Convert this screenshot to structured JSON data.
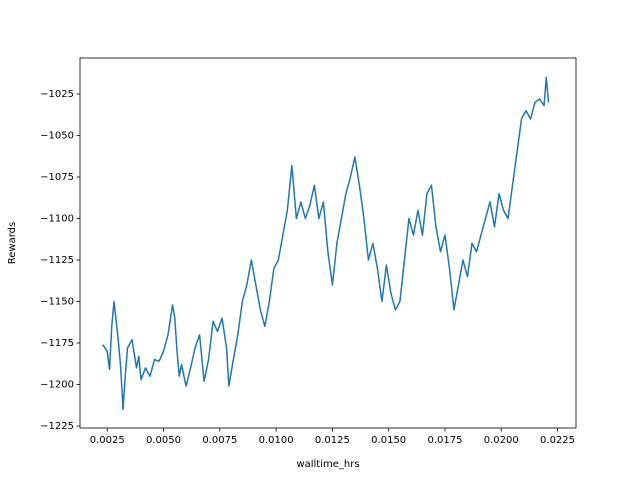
{
  "chart_data": {
    "type": "line",
    "xlabel": "walltime_hrs",
    "ylabel": "Rewards",
    "xlim": [
      0.00129,
      0.02332
    ],
    "ylim": [
      -1226.2,
      -1003.3
    ],
    "xticks": [
      0.0025,
      {
        "value": 0.005,
        "label": "0.0050"
      },
      0.0075,
      {
        "value": 0.01,
        "label": "0.0100"
      },
      0.0125,
      {
        "value": 0.015,
        "label": "0.0150"
      },
      0.0175,
      {
        "value": 0.02,
        "label": "0.0200"
      },
      0.0225
    ],
    "yticks": [
      {
        "value": -1225,
        "label": "−1225"
      },
      {
        "value": -1200,
        "label": "−1200"
      },
      {
        "value": -1175,
        "label": "−1175"
      },
      {
        "value": -1150,
        "label": "−1150"
      },
      {
        "value": -1125,
        "label": "−1125"
      },
      {
        "value": -1100,
        "label": "−1100"
      },
      {
        "value": -1075,
        "label": "−1075"
      },
      {
        "value": -1050,
        "label": "−1050"
      },
      {
        "value": -1025,
        "label": "−1025"
      }
    ],
    "series": [
      {
        "color": "#1f77b4",
        "x": [
          0.0023,
          0.0025,
          0.0026,
          0.0027,
          0.0028,
          0.0029,
          0.003,
          0.0031,
          0.0032,
          0.0033,
          0.0034,
          0.0036,
          0.0038,
          0.0039,
          0.004,
          0.0042,
          0.0044,
          0.0046,
          0.0048,
          0.005,
          0.0052,
          0.0054,
          0.0055,
          0.0056,
          0.0057,
          0.0058,
          0.006,
          0.0062,
          0.0064,
          0.0066,
          0.0068,
          0.007,
          0.0072,
          0.0074,
          0.0076,
          0.0078,
          0.0079,
          0.0081,
          0.0083,
          0.0085,
          0.0087,
          0.0089,
          0.0091,
          0.0093,
          0.0095,
          0.0097,
          0.0099,
          0.0101,
          0.0103,
          0.0105,
          0.0107,
          0.0109,
          0.0111,
          0.0113,
          0.0115,
          0.0117,
          0.0119,
          0.0121,
          0.0123,
          0.0125,
          0.0127,
          0.0129,
          0.0131,
          0.0133,
          0.0135,
          0.0137,
          0.0139,
          0.0141,
          0.0143,
          0.0145,
          0.0147,
          0.0149,
          0.0151,
          0.0153,
          0.0155,
          0.0157,
          0.0159,
          0.0161,
          0.0163,
          0.0165,
          0.0167,
          0.0169,
          0.0171,
          0.0173,
          0.0175,
          0.0177,
          0.0179,
          0.0181,
          0.0183,
          0.0185,
          0.0187,
          0.0189,
          0.0191,
          0.0193,
          0.0195,
          0.0197,
          0.0199,
          0.0201,
          0.0203,
          0.0205,
          0.0207,
          0.0209,
          0.0211,
          0.0213,
          0.0215,
          0.0217,
          0.0219,
          0.022,
          0.0221
        ],
        "values": [
          -1176,
          -1180,
          -1191,
          -1165,
          -1150,
          -1162,
          -1175,
          -1190,
          -1215,
          -1195,
          -1178,
          -1173,
          -1190,
          -1183,
          -1197,
          -1190,
          -1195,
          -1185,
          -1186,
          -1180,
          -1170,
          -1152,
          -1160,
          -1180,
          -1195,
          -1188,
          -1201,
          -1190,
          -1178,
          -1170,
          -1198,
          -1185,
          -1162,
          -1168,
          -1160,
          -1178,
          -1201,
          -1185,
          -1170,
          -1150,
          -1140,
          -1125,
          -1140,
          -1155,
          -1165,
          -1150,
          -1130,
          -1125,
          -1110,
          -1095,
          -1068,
          -1100,
          -1090,
          -1100,
          -1092,
          -1080,
          -1100,
          -1090,
          -1120,
          -1140,
          -1115,
          -1100,
          -1085,
          -1075,
          -1063,
          -1080,
          -1100,
          -1125,
          -1115,
          -1130,
          -1150,
          -1128,
          -1145,
          -1155,
          -1150,
          -1125,
          -1100,
          -1110,
          -1095,
          -1110,
          -1085,
          -1080,
          -1105,
          -1120,
          -1110,
          -1130,
          -1155,
          -1140,
          -1125,
          -1135,
          -1115,
          -1120,
          -1110,
          -1100,
          -1090,
          -1105,
          -1085,
          -1095,
          -1100,
          -1080,
          -1060,
          -1040,
          -1035,
          -1040,
          -1030,
          -1028,
          -1032,
          -1015,
          -1030
        ]
      }
    ]
  }
}
